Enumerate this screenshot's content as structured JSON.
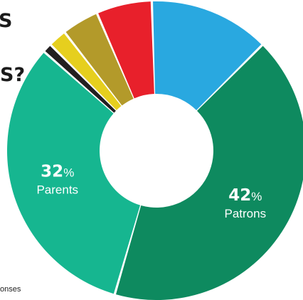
{
  "heading": {
    "line1": "S",
    "line2": "S?"
  },
  "footnote": "onses",
  "chart_data": {
    "type": "pie",
    "donut": true,
    "slices": [
      {
        "label": "Patrons",
        "value": 42,
        "value_label": "42",
        "color": "#0e8a5f"
      },
      {
        "label": "Parents",
        "value": 32,
        "value_label": "32",
        "color": "#16b690"
      },
      {
        "label": "",
        "value": 1,
        "color": "#231f20"
      },
      {
        "label": "",
        "value": 2,
        "color": "#e6cf1e"
      },
      {
        "label": "",
        "value": 4,
        "color": "#b39a2a"
      },
      {
        "label": "",
        "value": 6,
        "color": "#e8202b"
      },
      {
        "label": "",
        "value": 13,
        "color": "#29a8e0"
      }
    ],
    "percent_symbol": "%"
  }
}
